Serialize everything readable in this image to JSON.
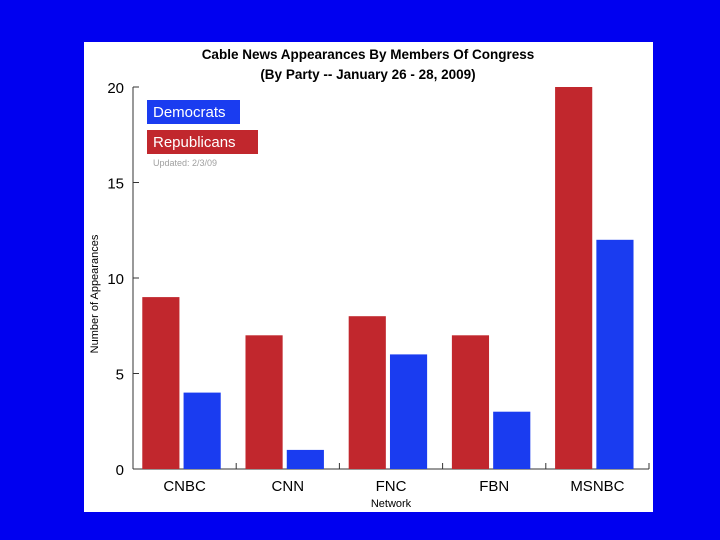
{
  "chart_data": {
    "type": "bar",
    "title": "Cable News Appearances By Members Of Congress",
    "subtitle": "(By Party -- January 26 - 28, 2009)",
    "xlabel": "Network",
    "ylabel": "Number of Appearances",
    "categories": [
      "CNBC",
      "CNN",
      "FNC",
      "FBN",
      "MSNBC"
    ],
    "series": [
      {
        "name": "Republicans",
        "color": "#c1272d",
        "values": [
          9,
          7,
          8,
          7,
          20
        ]
      },
      {
        "name": "Democrats",
        "color": "#1a3cf0",
        "values": [
          4,
          1,
          6,
          3,
          12
        ]
      }
    ],
    "ylim": [
      0,
      20
    ],
    "yticks": [
      0,
      5,
      10,
      15,
      20
    ],
    "legend_position": "top-left",
    "legend_note": "Updated: 2/3/09",
    "grid": false
  },
  "colors": {
    "page_background": "#0000f0",
    "panel_background": "#ffffff"
  }
}
